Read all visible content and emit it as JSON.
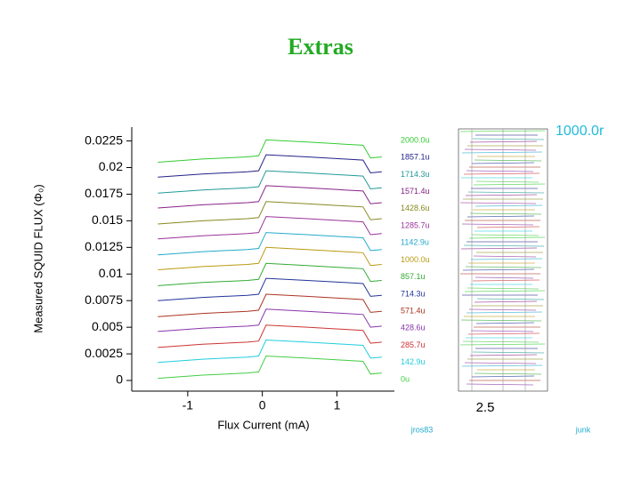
{
  "chart_data": {
    "type": "line",
    "title": "Extras",
    "x_label": "Flux Current (mA)",
    "y_label": "Measured SQUID FLUX (Φ₀)",
    "xlim": [
      -1.75,
      1.77
    ],
    "ylim": [
      -0.001,
      0.0238
    ],
    "xticks": [
      -1,
      0,
      1
    ],
    "yticks": [
      0,
      0.0025,
      0.005,
      0.0075,
      0.01,
      0.0125,
      0.015,
      0.0175,
      0.02,
      0.0225
    ],
    "x": [
      -1.4,
      -0.8,
      -0.2,
      -0.05,
      0.05,
      0.6,
      1.1,
      1.35,
      1.45,
      1.6
    ],
    "series": [
      {
        "name": "2000.0u",
        "color": "#33cc33",
        "values": [
          0.0205,
          0.0208,
          0.021,
          0.0211,
          0.0226,
          0.0224,
          0.0222,
          0.0221,
          0.0209,
          0.021
        ]
      },
      {
        "name": "1857.1u",
        "color": "#222288",
        "values": [
          0.0191,
          0.0194,
          0.0196,
          0.0197,
          0.0212,
          0.021,
          0.0208,
          0.0207,
          0.0195,
          0.0196
        ]
      },
      {
        "name": "1714.3u",
        "color": "#229999",
        "values": [
          0.0176,
          0.0179,
          0.0181,
          0.0182,
          0.0197,
          0.0195,
          0.0193,
          0.0192,
          0.018,
          0.0181
        ]
      },
      {
        "name": "1571.4u",
        "color": "#882288",
        "values": [
          0.0162,
          0.0165,
          0.0167,
          0.0168,
          0.0183,
          0.0181,
          0.0179,
          0.0178,
          0.0166,
          0.0167
        ]
      },
      {
        "name": "1428.6u",
        "color": "#888822",
        "values": [
          0.0147,
          0.015,
          0.0152,
          0.0153,
          0.0168,
          0.0166,
          0.0164,
          0.0163,
          0.0151,
          0.0152
        ]
      },
      {
        "name": "1285.7u",
        "color": "#993399",
        "values": [
          0.0133,
          0.0136,
          0.0138,
          0.0139,
          0.0154,
          0.0152,
          0.015,
          0.0149,
          0.0137,
          0.0138
        ]
      },
      {
        "name": "1142.9u",
        "color": "#22aacc",
        "values": [
          0.0118,
          0.0121,
          0.0123,
          0.0124,
          0.0139,
          0.0137,
          0.0135,
          0.0134,
          0.0122,
          0.0123
        ]
      },
      {
        "name": "1000.0u",
        "color": "#bb9911",
        "values": [
          0.0104,
          0.0107,
          0.0109,
          0.011,
          0.0125,
          0.0123,
          0.0121,
          0.012,
          0.0108,
          0.0109
        ]
      },
      {
        "name": "857.1u",
        "color": "#33aa33",
        "values": [
          0.0089,
          0.0092,
          0.0094,
          0.0095,
          0.011,
          0.0108,
          0.0106,
          0.0105,
          0.0093,
          0.0094
        ]
      },
      {
        "name": "714.3u",
        "color": "#223399",
        "values": [
          0.0075,
          0.0078,
          0.008,
          0.0081,
          0.0096,
          0.0094,
          0.0092,
          0.0091,
          0.0079,
          0.008
        ]
      },
      {
        "name": "571.4u",
        "color": "#aa3322",
        "values": [
          0.006,
          0.0063,
          0.0065,
          0.0066,
          0.0081,
          0.0079,
          0.0077,
          0.0076,
          0.0064,
          0.0065
        ]
      },
      {
        "name": "428.6u",
        "color": "#8833aa",
        "values": [
          0.0046,
          0.0049,
          0.0051,
          0.0052,
          0.0067,
          0.0065,
          0.0063,
          0.0062,
          0.005,
          0.0051
        ]
      },
      {
        "name": "285.7u",
        "color": "#cc3333",
        "values": [
          0.0031,
          0.0034,
          0.0036,
          0.0037,
          0.0052,
          0.005,
          0.0048,
          0.0047,
          0.0035,
          0.0036
        ]
      },
      {
        "name": "142.9u",
        "color": "#22ccdd",
        "values": [
          0.0017,
          0.002,
          0.0022,
          0.0023,
          0.0038,
          0.0036,
          0.0034,
          0.0033,
          0.0021,
          0.0022
        ]
      },
      {
        "name": "0u",
        "color": "#44cc44",
        "values": [
          0.0002,
          0.0005,
          0.0007,
          0.0008,
          0.0023,
          0.0021,
          0.0019,
          0.0018,
          0.0006,
          0.0007
        ]
      }
    ],
    "annotations": [
      "1000.0r",
      "2.5",
      "jros83",
      "junk"
    ]
  }
}
